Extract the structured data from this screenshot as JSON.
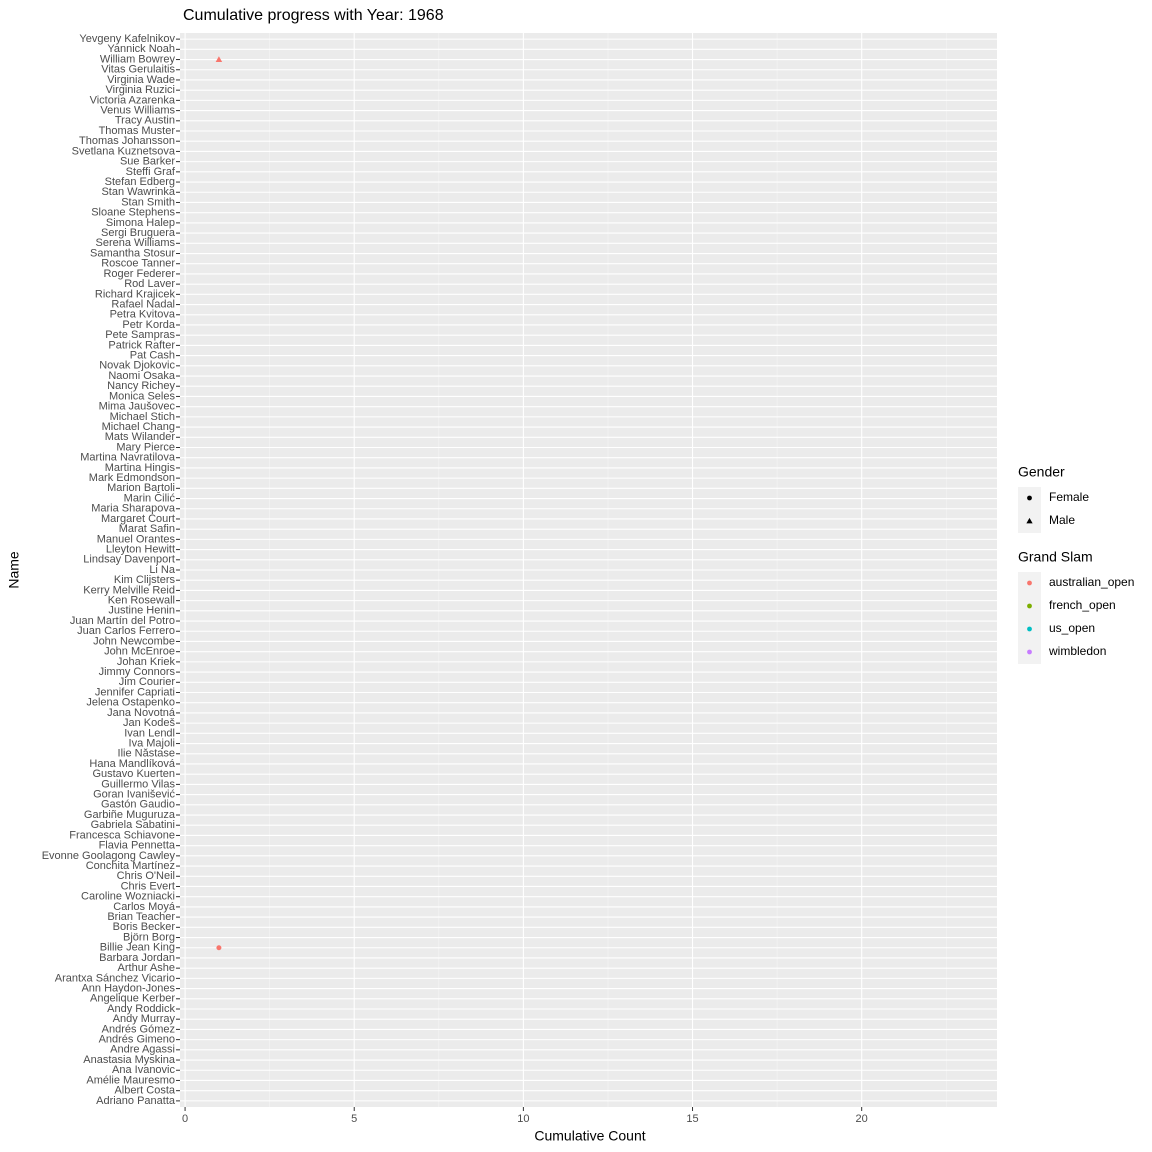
{
  "chart_data": {
    "type": "scatter",
    "title": "Cumulative progress with Year: 1968",
    "x_label": "Cumulative Count",
    "y_label": "Name",
    "categories": [
      "Adriano Panatta",
      "Albert Costa",
      "Amélie Mauresmo",
      "Ana Ivanovic",
      "Anastasia Myskina",
      "Andre Agassi",
      "Andrés Gimeno",
      "Andrés Gómez",
      "Andy Murray",
      "Andy Roddick",
      "Angelique Kerber",
      "Ann Haydon-Jones",
      "Arantxa Sánchez Vicario",
      "Arthur Ashe",
      "Barbara Jordan",
      "Billie Jean King",
      "Björn Borg",
      "Boris Becker",
      "Brian Teacher",
      "Carlos Moyá",
      "Caroline Wozniacki",
      "Chris Evert",
      "Chris O'Neil",
      "Conchita Martínez",
      "Evonne Goolagong Cawley",
      "Flavia Pennetta",
      "Francesca Schiavone",
      "Gabriela Sabatini",
      "Garbiñe Muguruza",
      "Gastón Gaudio",
      "Goran Ivanišević",
      "Guillermo Vilas",
      "Gustavo Kuerten",
      "Hana Mandlíková",
      "Ilie Năstase",
      "Iva Majoli",
      "Ivan Lendl",
      "Jan Kodeš",
      "Jana Novotná",
      "Jelena Ostapenko",
      "Jennifer Capriati",
      "Jim Courier",
      "Jimmy Connors",
      "Johan Kriek",
      "John McEnroe",
      "John Newcombe",
      "Juan Carlos Ferrero",
      "Juan Martín del Potro",
      "Justine Henin",
      "Ken Rosewall",
      "Kerry Melville Reid",
      "Kim Clijsters",
      "Li Na",
      "Lindsay Davenport",
      "Lleyton Hewitt",
      "Manuel Orantes",
      "Marat Safin",
      "Margaret Court",
      "Maria Sharapova",
      "Marin Čilić",
      "Marion Bartoli",
      "Mark Edmondson",
      "Martina Hingis",
      "Martina Navratilova",
      "Mary Pierce",
      "Mats Wilander",
      "Michael Chang",
      "Michael Stich",
      "Mima Jaušovec",
      "Monica Seles",
      "Nancy Richey",
      "Naomi Osaka",
      "Novak Djokovic",
      "Pat Cash",
      "Patrick Rafter",
      "Pete Sampras",
      "Petr Korda",
      "Petra Kvitova",
      "Rafael Nadal",
      "Richard Krajicek",
      "Rod Laver",
      "Roger Federer",
      "Roscoe Tanner",
      "Samantha Stosur",
      "Serena Williams",
      "Sergi Bruguera",
      "Simona Halep",
      "Sloane Stephens",
      "Stan Smith",
      "Stan Wawrinka",
      "Stefan Edberg",
      "Steffi Graf",
      "Sue Barker",
      "Svetlana Kuznetsova",
      "Thomas Johansson",
      "Thomas Muster",
      "Tracy Austin",
      "Venus Williams",
      "Victoria Azarenka",
      "Virginia Ruzici",
      "Virginia Wade",
      "Vitas Gerulaitis",
      "William Bowrey",
      "Yannick Noah",
      "Yevgeny Kafelnikov"
    ],
    "points": [
      {
        "name": "William Bowrey",
        "x": 1,
        "gender": "Male",
        "grand_slam": "australian_open"
      },
      {
        "name": "Billie Jean King",
        "x": 1,
        "gender": "Female",
        "grand_slam": "australian_open"
      }
    ],
    "xlim": [
      -0.15,
      24
    ],
    "xticks": [
      0,
      5,
      10,
      15,
      20
    ],
    "grid": true,
    "legend_position": "right",
    "legends": [
      {
        "title": "Gender",
        "entries": [
          {
            "label": "Female",
            "shape": "circle"
          },
          {
            "label": "Male",
            "shape": "triangle"
          }
        ]
      },
      {
        "title": "Grand Slam",
        "entries": [
          {
            "label": "australian_open",
            "color": "#F8766D"
          },
          {
            "label": "french_open",
            "color": "#7CAE00"
          },
          {
            "label": "us_open",
            "color": "#00BFC4"
          },
          {
            "label": "wimbledon",
            "color": "#C77CFF"
          }
        ]
      }
    ]
  }
}
